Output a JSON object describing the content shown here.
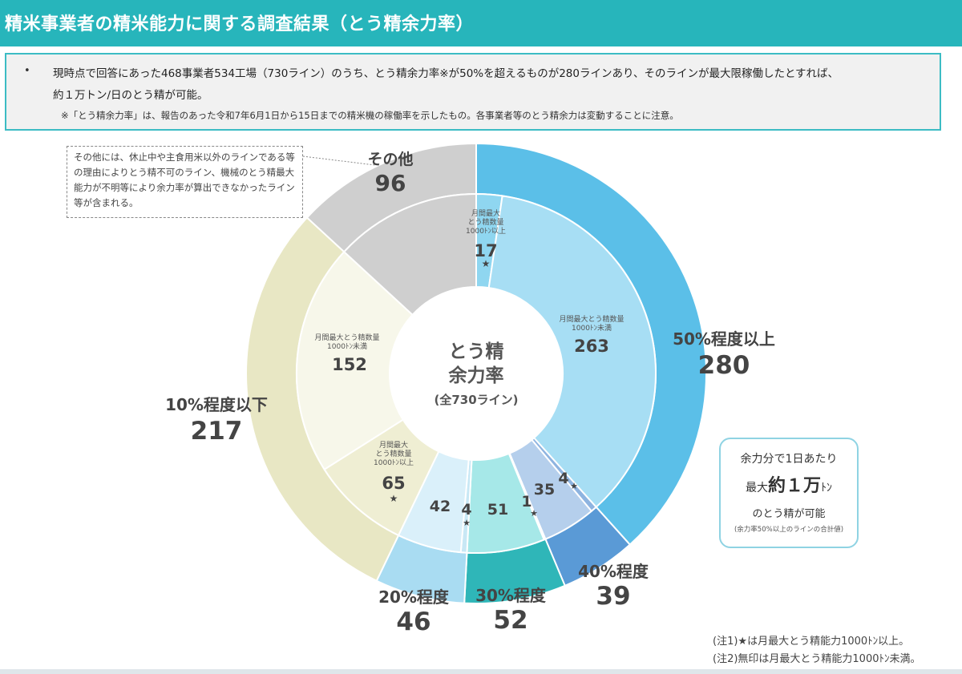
{
  "header": {
    "title": "精米事業者の精米能力に関する調査結果（とう精余力率）"
  },
  "summary": {
    "bullet": "•",
    "line1": "現時点で回答にあった468事業者534工場（730ライン）のうち、とう精余力率※が50%を超えるものが280ラインあり、そのラインが最大限稼働したとすれば、",
    "line2": "約１万トン/日のとう精が可能。",
    "note": "※「とう精余力率」は、報告のあった令和7年6月1日から15日までの精米機の稼働率を示したもの。各事業者等のとう精余力は変動することに注意。"
  },
  "callout": {
    "text": "その他には、休止中や主食用米以外のラインである等の理由によりとう精不可のライン、機械のとう精最大能力が不明等により余力率が算出できなかったライン等が含まれる。"
  },
  "center": {
    "line1": "とう精",
    "line2": "余力率",
    "line3": "(全730ライン)"
  },
  "capacity_box": {
    "line1": "余力分で1日あたり",
    "line2_prefix": "最大",
    "line2_big": "約１万",
    "line2_unit": "ﾄﾝ",
    "line3": "のとう精が可能",
    "line4": "(余力率50%以上のラインの合計値)"
  },
  "footnotes": {
    "note1": "(注1)★は月最大とう精能力1000ﾄﾝ以上。",
    "note2": "(注2)無印は月最大とう精能力1000ﾄﾝ未満。"
  },
  "chart_data": {
    "type": "pie",
    "subtype": "nested-donut",
    "total": 730,
    "outer_ring": [
      {
        "name": "50%程度以上",
        "value": 280,
        "color": "#5bbfe8"
      },
      {
        "name": "40%程度",
        "value": 39,
        "color": "#5a9ad6"
      },
      {
        "name": "30%程度",
        "value": 52,
        "color": "#2fb6b8"
      },
      {
        "name": "20%程度",
        "value": 46,
        "color": "#a9dcf2"
      },
      {
        "name": "10%程度以下",
        "value": 217,
        "color": "#e8e7c4"
      },
      {
        "name": "その他",
        "value": 96,
        "color": "#cfcfcf"
      }
    ],
    "inner_ring": [
      {
        "group": "50%程度以上",
        "value": 17,
        "star": true,
        "label": "月間最大\nとう精数量\n1000ﾄﾝ以上",
        "color": "#8fd6f0"
      },
      {
        "group": "50%程度以上",
        "value": 263,
        "star": false,
        "label": "月間最大とう精数量\n1000ﾄﾝ未満",
        "color": "#a7def4"
      },
      {
        "group": "40%程度",
        "value": 4,
        "star": true,
        "label": "",
        "color": "#8eb4e0"
      },
      {
        "group": "40%程度",
        "value": 35,
        "star": false,
        "label": "",
        "color": "#b5cfec"
      },
      {
        "group": "30%程度",
        "value": 1,
        "star": true,
        "label": "",
        "color": "#7fd8d6"
      },
      {
        "group": "30%程度",
        "value": 51,
        "star": false,
        "label": "",
        "color": "#a6e8e8"
      },
      {
        "group": "20%程度",
        "value": 4,
        "star": true,
        "label": "",
        "color": "#c8e8f5"
      },
      {
        "group": "20%程度",
        "value": 42,
        "star": false,
        "label": "",
        "color": "#daf0fa"
      },
      {
        "group": "10%程度以下",
        "value": 65,
        "star": true,
        "label": "月間最大\nとう精数量\n1000ﾄﾝ以上",
        "color": "#efeed3"
      },
      {
        "group": "10%程度以下",
        "value": 152,
        "star": false,
        "label": "月間最大とう精数量\n1000ﾄﾝ未満",
        "color": "#f7f7ea"
      },
      {
        "group": "その他",
        "value": 96,
        "star": false,
        "label": "",
        "color": "#cfcfcf"
      }
    ],
    "star_symbol": "★"
  }
}
